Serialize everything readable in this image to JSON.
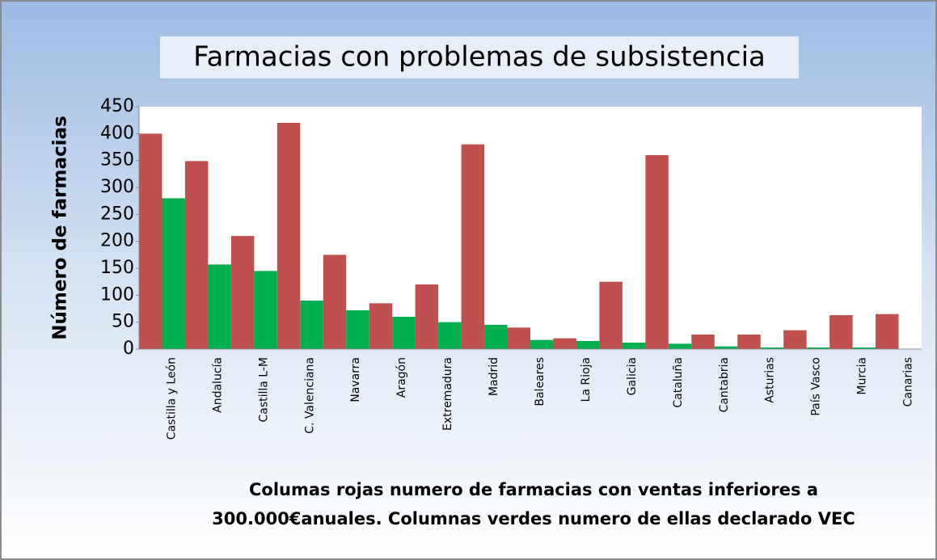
{
  "chart_data": {
    "type": "bar",
    "title": "Farmacias con problemas de subsistencia",
    "y_label": "Número de farmacias",
    "x_label": "Columas rojas numero de farmacias con ventas inferiores a 300.000€anuales. Columnas verdes numero de ellas declarado VEC",
    "categories": [
      "Castilla y León",
      "Andalucía",
      "Castilla L-M",
      "C. Valenciana",
      "Navarra",
      "Aragón",
      "Extremadura",
      "Madrid",
      "Baleares",
      "La Rioja",
      "Galicia",
      "Cataluña",
      "Cantabria",
      "Asturias",
      "País Vasco",
      "Murcia",
      "Canarias"
    ],
    "series": [
      {
        "color": "#c0504d",
        "values": [
          400,
          349,
          210,
          420,
          175,
          85,
          120,
          380,
          40,
          20,
          125,
          360,
          27,
          27,
          35,
          63,
          65
        ]
      },
      {
        "color": "#00b050",
        "values": [
          280,
          157,
          145,
          90,
          72,
          60,
          50,
          45,
          17,
          15,
          12,
          10,
          5,
          3,
          3,
          3,
          0
        ]
      }
    ],
    "ylim": [
      0,
      450
    ],
    "yticks": [
      0,
      50,
      100,
      150,
      200,
      250,
      300,
      350,
      400,
      450
    ],
    "grid": false
  }
}
